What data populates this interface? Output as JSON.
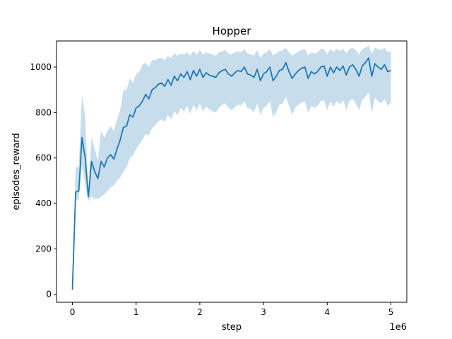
{
  "chart_data": {
    "type": "line",
    "title": "Hopper",
    "xlabel": "step",
    "ylabel": "episodes_reward",
    "x_offset_label": "1e6",
    "xlim": [
      -0.25,
      5.25
    ],
    "ylim": [
      -35,
      1115
    ],
    "xticks": [
      0,
      1,
      2,
      3,
      4,
      5
    ],
    "xtick_labels": [
      "0",
      "1",
      "2",
      "3",
      "4",
      "5"
    ],
    "yticks": [
      0,
      200,
      400,
      600,
      800,
      1000
    ],
    "ytick_labels": [
      "0",
      "200",
      "400",
      "600",
      "800",
      "1000"
    ],
    "grid": false,
    "series": [
      {
        "color": "#1f77b4",
        "band_color": "#1f77b4",
        "band_opacity": 0.25,
        "x": [
          0.0,
          0.05,
          0.1,
          0.15,
          0.2,
          0.25,
          0.3,
          0.35,
          0.4,
          0.45,
          0.5,
          0.55,
          0.6,
          0.65,
          0.7,
          0.75,
          0.8,
          0.85,
          0.9,
          0.95,
          1.0,
          1.05,
          1.1,
          1.15,
          1.2,
          1.25,
          1.3,
          1.35,
          1.4,
          1.45,
          1.5,
          1.55,
          1.6,
          1.65,
          1.7,
          1.75,
          1.8,
          1.85,
          1.9,
          1.95,
          2.0,
          2.05,
          2.1,
          2.15,
          2.2,
          2.25,
          2.3,
          2.35,
          2.4,
          2.45,
          2.5,
          2.55,
          2.6,
          2.65,
          2.7,
          2.75,
          2.8,
          2.85,
          2.9,
          2.95,
          3.0,
          3.05,
          3.1,
          3.15,
          3.2,
          3.25,
          3.3,
          3.35,
          3.4,
          3.45,
          3.5,
          3.55,
          3.6,
          3.65,
          3.7,
          3.75,
          3.8,
          3.85,
          3.9,
          3.95,
          4.0,
          4.05,
          4.1,
          4.15,
          4.2,
          4.25,
          4.3,
          4.35,
          4.4,
          4.45,
          4.5,
          4.55,
          4.6,
          4.65,
          4.7,
          4.75,
          4.8,
          4.85,
          4.9,
          4.95,
          5.0
        ],
        "y": [
          20,
          450,
          455,
          690,
          600,
          430,
          585,
          540,
          510,
          585,
          560,
          600,
          615,
          595,
          640,
          680,
          735,
          740,
          790,
          780,
          820,
          830,
          850,
          880,
          860,
          900,
          910,
          925,
          930,
          915,
          945,
          920,
          960,
          940,
          970,
          955,
          980,
          945,
          985,
          960,
          990,
          955,
          975,
          965,
          960,
          955,
          975,
          985,
          990,
          970,
          960,
          975,
          985,
          980,
          1000,
          970,
          965,
          955,
          990,
          940,
          970,
          980,
          1000,
          940,
          960,
          985,
          990,
          1020,
          980,
          950,
          970,
          985,
          995,
          1000,
          950,
          980,
          970,
          980,
          1000,
          1005,
          960,
          1000,
          975,
          1000,
          985,
          1005,
          965,
          1000,
          1010,
          990,
          960,
          1005,
          1020,
          1040,
          960,
          1015,
          1000,
          990,
          1010,
          980,
          985
        ],
        "lower": [
          15,
          410,
          420,
          570,
          480,
          410,
          430,
          420,
          420,
          430,
          440,
          455,
          470,
          480,
          500,
          515,
          540,
          560,
          600,
          610,
          640,
          660,
          680,
          705,
          700,
          730,
          745,
          760,
          770,
          760,
          790,
          770,
          805,
          790,
          820,
          805,
          830,
          795,
          835,
          810,
          840,
          805,
          825,
          815,
          805,
          800,
          820,
          835,
          840,
          820,
          810,
          825,
          835,
          830,
          850,
          820,
          815,
          800,
          840,
          790,
          820,
          830,
          850,
          780,
          800,
          835,
          840,
          870,
          830,
          790,
          820,
          835,
          845,
          850,
          800,
          830,
          820,
          830,
          850,
          855,
          810,
          850,
          825,
          850,
          835,
          855,
          810,
          850,
          860,
          840,
          810,
          855,
          870,
          890,
          800,
          865,
          850,
          840,
          860,
          830,
          845
        ],
        "upper": [
          25,
          560,
          560,
          880,
          780,
          470,
          690,
          640,
          590,
          720,
          690,
          720,
          740,
          720,
          770,
          810,
          900,
          900,
          950,
          930,
          970,
          980,
          1010,
          1020,
          1000,
          1030,
          1030,
          1040,
          1040,
          1030,
          1050,
          1040,
          1060,
          1050,
          1060,
          1055,
          1065,
          1050,
          1070,
          1055,
          1075,
          1055,
          1065,
          1060,
          1055,
          1050,
          1065,
          1070,
          1075,
          1060,
          1055,
          1065,
          1070,
          1065,
          1080,
          1060,
          1055,
          1050,
          1075,
          1040,
          1060,
          1065,
          1080,
          1050,
          1060,
          1070,
          1075,
          1085,
          1065,
          1050,
          1060,
          1070,
          1075,
          1080,
          1050,
          1065,
          1060,
          1065,
          1080,
          1080,
          1055,
          1080,
          1065,
          1080,
          1070,
          1080,
          1060,
          1080,
          1085,
          1075,
          1055,
          1080,
          1085,
          1095,
          1060,
          1085,
          1080,
          1075,
          1085,
          1065,
          1070
        ]
      }
    ]
  }
}
